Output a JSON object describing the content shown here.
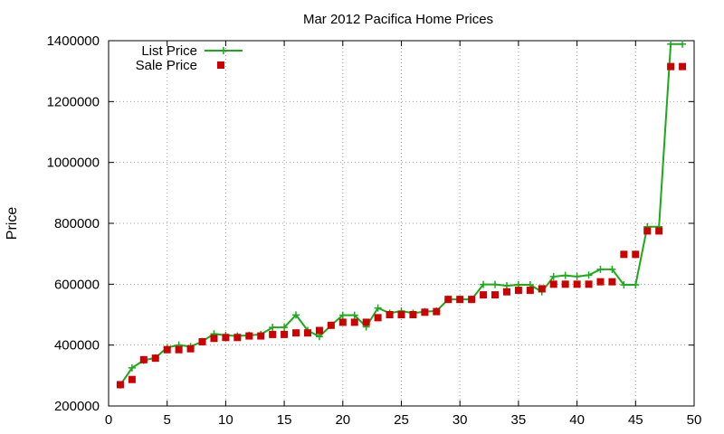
{
  "chart_data": {
    "type": "line",
    "title": "Mar 2012 Pacifica Home Prices",
    "xlabel": "",
    "ylabel": "Price",
    "xlim": [
      0,
      50
    ],
    "ylim": [
      200000,
      1400000
    ],
    "x_ticks": [
      0,
      5,
      10,
      15,
      20,
      25,
      30,
      35,
      40,
      45,
      50
    ],
    "y_ticks": [
      200000,
      400000,
      600000,
      800000,
      1000000,
      1200000,
      1400000
    ],
    "grid": true,
    "legend_position": "top-left",
    "series": [
      {
        "name": "List Price",
        "style": "line-with-plus-points",
        "color": "#1aaa1a",
        "x": [
          1,
          2,
          3,
          4,
          5,
          6,
          7,
          8,
          9,
          10,
          11,
          12,
          13,
          14,
          15,
          16,
          17,
          18,
          19,
          20,
          21,
          22,
          23,
          24,
          25,
          26,
          27,
          28,
          29,
          30,
          31,
          32,
          33,
          34,
          35,
          36,
          37,
          38,
          39,
          40,
          41,
          42,
          43,
          44,
          45,
          46,
          47,
          48,
          49
        ],
        "values": [
          269000,
          325000,
          350000,
          358000,
          392000,
          400000,
          395000,
          412000,
          437000,
          432000,
          430000,
          432000,
          435000,
          458000,
          458000,
          499000,
          448000,
          428000,
          465000,
          498000,
          498000,
          460000,
          522000,
          505000,
          512000,
          505000,
          510000,
          512000,
          550000,
          550000,
          550000,
          599000,
          599000,
          595000,
          598000,
          598000,
          575000,
          625000,
          629000,
          625000,
          630000,
          649000,
          649000,
          598000,
          598000,
          789000,
          789000,
          1389000,
          1389000
        ]
      },
      {
        "name": "Sale Price",
        "style": "square-points",
        "color": "#cc0000",
        "x": [
          1,
          2,
          3,
          4,
          5,
          6,
          7,
          8,
          9,
          10,
          11,
          12,
          13,
          14,
          15,
          16,
          17,
          18,
          19,
          20,
          21,
          22,
          23,
          24,
          25,
          26,
          27,
          28,
          29,
          30,
          31,
          32,
          33,
          34,
          35,
          36,
          37,
          38,
          39,
          40,
          41,
          42,
          43,
          44,
          45,
          46,
          47,
          48,
          49
        ],
        "values": [
          270000,
          287000,
          352000,
          357000,
          385000,
          385000,
          388000,
          411000,
          422000,
          425000,
          425000,
          430000,
          430000,
          435000,
          435000,
          440000,
          440000,
          448000,
          465000,
          475000,
          475000,
          475000,
          490000,
          500000,
          500000,
          500000,
          508000,
          510000,
          550000,
          550000,
          550000,
          565000,
          565000,
          575000,
          580000,
          580000,
          585000,
          600000,
          600000,
          600000,
          600000,
          608000,
          608000,
          698000,
          698000,
          775000,
          775000,
          1315000,
          1315000
        ]
      }
    ]
  }
}
